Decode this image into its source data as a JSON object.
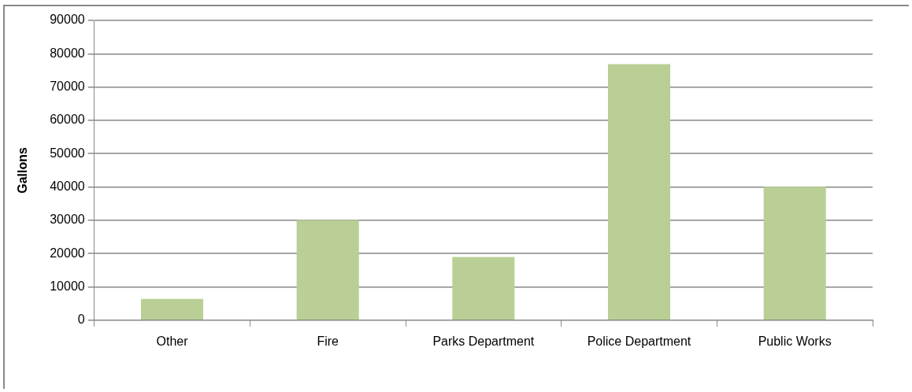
{
  "chart_data": {
    "type": "bar",
    "ylabel": "Gallons",
    "categories": [
      "Other",
      "Fire",
      "Parks Department",
      "Police Department",
      "Public Works"
    ],
    "values": [
      6400,
      30100,
      19000,
      76900,
      40100
    ],
    "color": "#b9cf95",
    "ylim": [
      0,
      90000
    ],
    "yticks": [
      0,
      10000,
      20000,
      30000,
      40000,
      50000,
      60000,
      70000,
      80000,
      90000
    ],
    "grid": "y",
    "legend": false
  }
}
